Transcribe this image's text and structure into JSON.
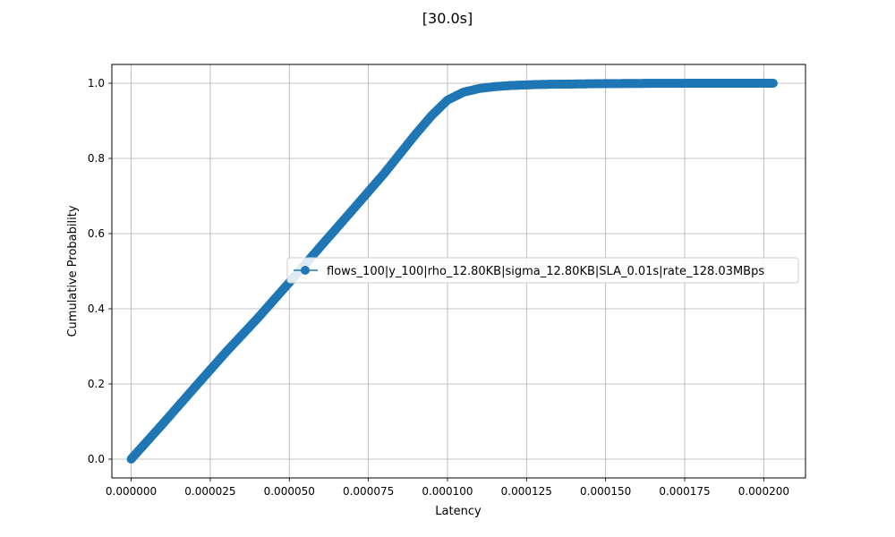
{
  "chart_data": {
    "type": "line",
    "title": "[30.0s]",
    "xlabel": "Latency",
    "ylabel": "Cumulative Probability",
    "xlim": [
      -6.1e-06,
      0.0002132
    ],
    "ylim": [
      -0.05,
      1.05
    ],
    "x_ticks": [
      0,
      2.5e-05,
      5e-05,
      7.5e-05,
      0.0001,
      0.000125,
      0.00015,
      0.000175,
      0.0002
    ],
    "x_tick_labels": [
      "0.000000",
      "0.000025",
      "0.000050",
      "0.000075",
      "0.000100",
      "0.000125",
      "0.000150",
      "0.000175",
      "0.000200"
    ],
    "y_ticks": [
      0,
      0.2,
      0.4,
      0.6,
      0.8,
      1.0
    ],
    "y_tick_labels": [
      "0.0",
      "0.2",
      "0.4",
      "0.6",
      "0.8",
      "1.0"
    ],
    "grid": true,
    "legend_position": "center-right",
    "series": [
      {
        "name": "flows_100|y_100|rho_12.80KB|sigma_12.80KB|SLA_0.01s|rate_128.03MBps",
        "color": "#1f77b4",
        "marker": "circle",
        "x": [
          0,
          5e-07,
          1e-05,
          2e-05,
          3e-05,
          4e-05,
          5e-05,
          6e-05,
          7e-05,
          8e-05,
          9e-05,
          9.5e-05,
          0.0001,
          0.000105,
          0.00011,
          0.000115,
          0.00012,
          0.00013,
          0.00014,
          0.00015,
          0.00016,
          0.00017,
          0.00018,
          0.00019,
          0.0002,
          0.000203
        ],
        "y": [
          0,
          0.005,
          0.094,
          0.19,
          0.285,
          0.375,
          0.47,
          0.567,
          0.663,
          0.76,
          0.865,
          0.914,
          0.955,
          0.976,
          0.986,
          0.991,
          0.994,
          0.997,
          0.998,
          0.999,
          0.9995,
          0.9998,
          0.9999,
          1.0,
          1.0,
          1.0
        ]
      }
    ]
  }
}
